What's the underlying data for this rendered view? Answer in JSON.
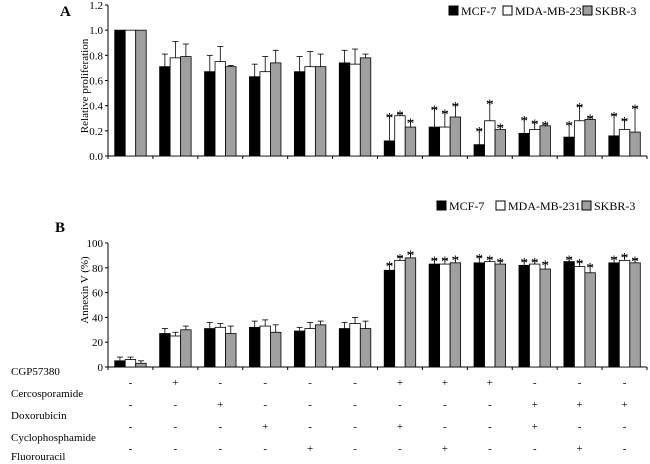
{
  "chart_data": [
    {
      "panel": "A",
      "type": "bar",
      "ylabel": "Relative proliferation",
      "ylim": [
        0,
        1.2
      ],
      "yticks": [
        "0.0",
        "0.2",
        "0.4",
        "0.6",
        "0.8",
        "1.0",
        "1.2"
      ],
      "series": [
        {
          "name": "MCF-7",
          "color": "#000000",
          "values": [
            1.0,
            0.71,
            0.67,
            0.63,
            0.67,
            0.74,
            0.12,
            0.23,
            0.09,
            0.18,
            0.15,
            0.16
          ],
          "errors": [
            0,
            0.1,
            0.13,
            0.1,
            0.12,
            0.1,
            0.2,
            0.15,
            0.12,
            0.12,
            0.11,
            0.17
          ],
          "stars": [
            false,
            false,
            false,
            false,
            false,
            false,
            true,
            true,
            true,
            true,
            true,
            true
          ]
        },
        {
          "name": "MDA-MB-231",
          "color": "#ffffff",
          "values": [
            1.0,
            0.78,
            0.75,
            0.67,
            0.71,
            0.73,
            0.32,
            0.23,
            0.28,
            0.21,
            0.28,
            0.21
          ],
          "errors": [
            0,
            0.13,
            0.12,
            0.12,
            0.12,
            0.12,
            0.02,
            0.12,
            0.15,
            0.06,
            0.12,
            0.08
          ],
          "stars": [
            false,
            false,
            false,
            false,
            false,
            false,
            true,
            true,
            true,
            true,
            true,
            true
          ]
        },
        {
          "name": "SKBR-3",
          "color": "#a0a0a0",
          "values": [
            1.0,
            0.79,
            0.71,
            0.74,
            0.71,
            0.78,
            0.23,
            0.31,
            0.21,
            0.24,
            0.29,
            0.19
          ],
          "errors": [
            0,
            0.1,
            0.01,
            0.1,
            0.1,
            0.03,
            0.05,
            0.1,
            0.03,
            0.02,
            0.02,
            0.2
          ],
          "stars": [
            false,
            false,
            false,
            false,
            false,
            false,
            true,
            true,
            true,
            true,
            true,
            true
          ]
        }
      ],
      "legend": "top-right"
    },
    {
      "panel": "B",
      "type": "bar",
      "ylabel": "Annexin V (%)",
      "ylim": [
        0,
        100
      ],
      "yticks": [
        "0",
        "20",
        "40",
        "60",
        "80",
        "100"
      ],
      "series": [
        {
          "name": "MCF-7",
          "color": "#000000",
          "values": [
            5,
            27,
            31,
            32,
            29,
            31,
            78,
            83,
            84,
            82,
            85,
            84
          ],
          "errors": [
            3,
            4,
            5,
            5,
            3,
            5,
            5,
            4,
            5,
            4,
            3,
            4
          ],
          "stars": [
            false,
            false,
            false,
            false,
            false,
            false,
            true,
            true,
            true,
            true,
            true,
            true
          ]
        },
        {
          "name": "MDA-MB-231",
          "color": "#ffffff",
          "values": [
            6,
            25,
            32,
            33,
            31,
            35,
            86,
            83,
            85,
            83,
            81,
            86
          ],
          "errors": [
            2,
            3,
            3,
            5,
            5,
            5,
            3,
            4,
            3,
            3,
            4,
            4
          ],
          "stars": [
            false,
            false,
            false,
            false,
            false,
            false,
            true,
            true,
            true,
            true,
            true,
            true
          ]
        },
        {
          "name": "SKBR-3",
          "color": "#a0a0a0",
          "values": [
            3,
            30,
            27,
            28,
            34,
            31,
            88,
            84,
            83,
            79,
            76,
            84
          ],
          "errors": [
            2,
            3,
            6,
            6,
            3,
            6,
            4,
            4,
            3,
            5,
            6,
            3
          ],
          "stars": [
            false,
            false,
            false,
            false,
            false,
            false,
            true,
            true,
            true,
            true,
            true,
            true
          ]
        }
      ],
      "legend": "top-right"
    }
  ],
  "treatments": {
    "rows": [
      "CGP57380",
      "Cercosporamide",
      "Doxorubicin",
      "Cyclophosphamide",
      "Fluorouracil"
    ],
    "signs": [
      [
        "-",
        "+",
        "-",
        "-",
        "-",
        "-",
        "+",
        "+",
        "+",
        "-",
        "-",
        "-"
      ],
      [
        "-",
        "-",
        "+",
        "-",
        "-",
        "-",
        "-",
        "-",
        "-",
        "+",
        "+",
        "+"
      ],
      [
        "-",
        "-",
        "-",
        "+",
        "-",
        "-",
        "+",
        "-",
        "-",
        "+",
        "-",
        "-"
      ],
      [
        "-",
        "-",
        "-",
        "-",
        "+",
        "-",
        "-",
        "+",
        "-",
        "-",
        "+",
        "-"
      ],
      [
        "-",
        "-",
        "-",
        "-",
        "-",
        "+",
        "-",
        "-",
        "+",
        "-",
        "-",
        "+"
      ]
    ]
  },
  "panel_labels": [
    "A",
    "B"
  ],
  "star_symbol": "*"
}
